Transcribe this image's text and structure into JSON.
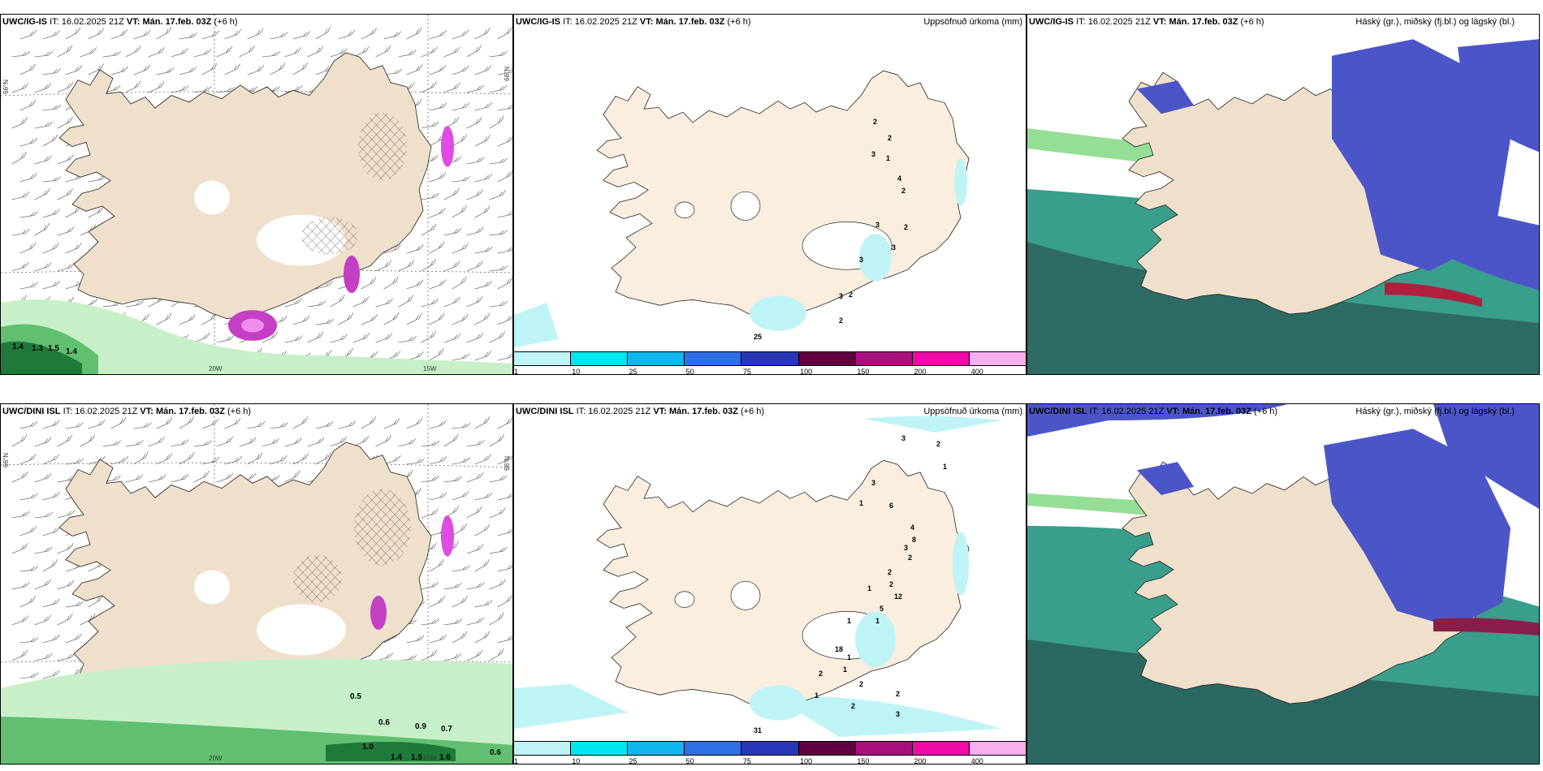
{
  "rows": [
    {
      "model": "UWC/IG-IS",
      "it_label": "IT:",
      "it": "16.02.2025 21Z",
      "vt_label": "VT:",
      "vt": "Mán. 17.feb. 03Z",
      "lead": "(+6 h)",
      "precip_title": "Uppsöfnuð úrkoma (mm)",
      "cloud_title": "Háský (gr.), miðský (fj.bl.) og lágský (bl.)",
      "precip_labels": [
        "2",
        "2",
        "1",
        "3",
        "4",
        "2",
        "2",
        "3",
        "3",
        "3",
        "3",
        "2",
        "2",
        "25"
      ],
      "wind_labels": [
        "1.4",
        "1.3",
        "1.5",
        "1.4"
      ]
    },
    {
      "model": "UWC/DINI ISL",
      "it_label": "IT:",
      "it": "16.02.2025 21Z",
      "vt_label": "VT:",
      "vt": "Mán. 17.feb. 03Z",
      "lead": "(+6 h)",
      "precip_title": "Uppsöfnuð úrkoma (mm)",
      "cloud_title": "Háský (gr.), miðský (fj.bl.) og lágský (bl.)",
      "precip_labels": [
        "3",
        "2",
        "1",
        "3",
        "1",
        "6",
        "4",
        "8",
        "3",
        "2",
        "2",
        "2",
        "12",
        "1",
        "5",
        "1",
        "1",
        "18",
        "1",
        "1",
        "2",
        "2",
        "2",
        "1",
        "2",
        "3",
        "31"
      ],
      "wind_labels": [
        "0.5",
        "0.6",
        "0.9",
        "0.7",
        "1.0",
        "1.4",
        "1.5",
        "1.6",
        "0.6"
      ]
    }
  ],
  "axis_labels": {
    "lat": "66°N",
    "lon_west20": "20W",
    "lon_west15": "15W"
  },
  "colorbar": {
    "ticks": [
      "1",
      "10",
      "25",
      "50",
      "75",
      "100",
      "150",
      "200",
      "400"
    ],
    "colors": [
      "#bff4f6",
      "#00e6f0",
      "#10b6ec",
      "#2f6fe6",
      "#2a36b8",
      "#600040",
      "#a8107c",
      "#f00aa8",
      "#f6b0ee"
    ]
  },
  "colors": {
    "land": "#efe0cc",
    "precip_land": "#fbeedf",
    "snow_hatch": "#555555",
    "green_light": "#c8f0c8",
    "green_mid": "#60c070",
    "green_dark": "#1e7a38",
    "cloud_high": "#4c55c8",
    "cloud_mid": "#3a9e8c",
    "cloud_low": "#2a5e5a"
  }
}
